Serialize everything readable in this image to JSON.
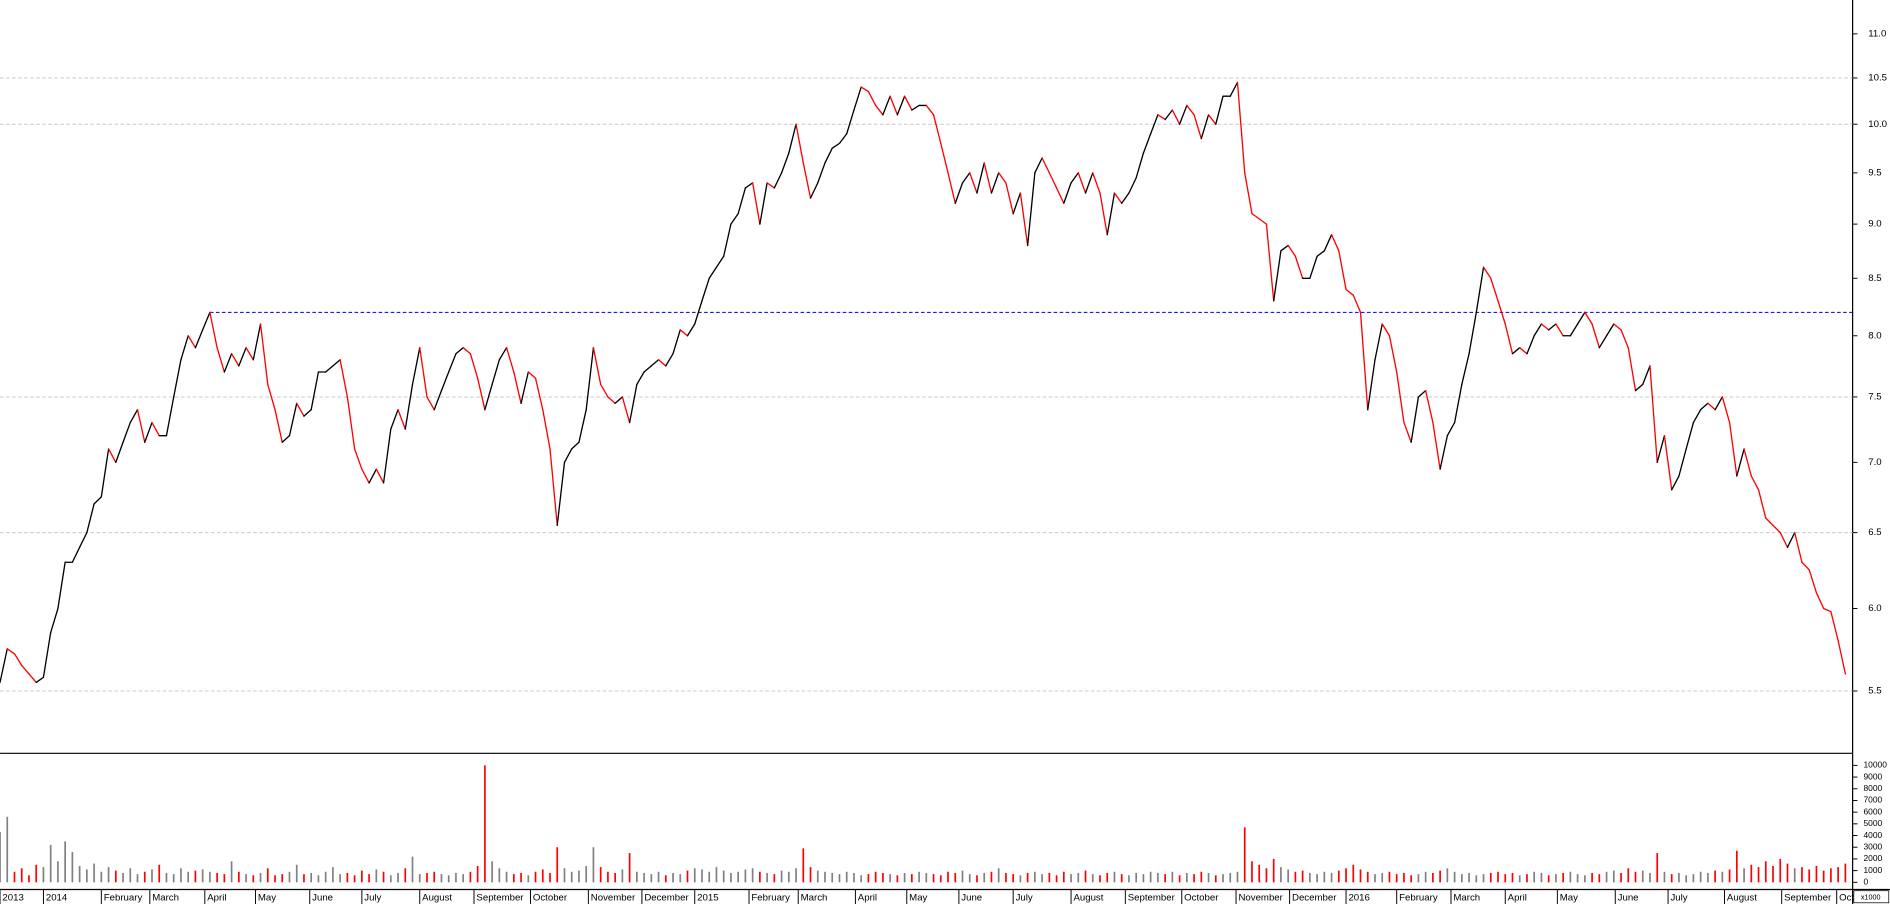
{
  "chart_data": [
    {
      "type": "line",
      "log_scale": true,
      "up_color": "#000000",
      "down_color": "#ff0000",
      "values": [
        5.55,
        5.75,
        5.72,
        5.65,
        5.6,
        5.55,
        5.58,
        5.85,
        6.0,
        6.3,
        6.3,
        6.4,
        6.5,
        6.7,
        6.75,
        7.1,
        7.0,
        7.15,
        7.3,
        7.4,
        7.15,
        7.3,
        7.2,
        7.2,
        7.5,
        7.8,
        8.0,
        7.9,
        8.05,
        8.2,
        7.9,
        7.7,
        7.85,
        7.75,
        7.9,
        7.8,
        8.1,
        7.6,
        7.4,
        7.15,
        7.2,
        7.45,
        7.35,
        7.4,
        7.7,
        7.7,
        7.75,
        7.8,
        7.5,
        7.1,
        6.95,
        6.85,
        6.95,
        6.85,
        7.25,
        7.4,
        7.25,
        7.6,
        7.9,
        7.5,
        7.4,
        7.55,
        7.7,
        7.85,
        7.9,
        7.85,
        7.65,
        7.4,
        7.6,
        7.8,
        7.9,
        7.7,
        7.45,
        7.7,
        7.65,
        7.4,
        7.1,
        6.55,
        7.0,
        7.1,
        7.15,
        7.4,
        7.9,
        7.6,
        7.5,
        7.45,
        7.5,
        7.3,
        7.6,
        7.7,
        7.75,
        7.8,
        7.75,
        7.85,
        8.05,
        8.0,
        8.1,
        8.3,
        8.5,
        8.6,
        8.7,
        9.0,
        9.1,
        9.35,
        9.4,
        9.0,
        9.4,
        9.35,
        9.5,
        9.7,
        10.0,
        9.6,
        9.25,
        9.4,
        9.6,
        9.75,
        9.8,
        9.9,
        10.15,
        10.4,
        10.35,
        10.2,
        10.1,
        10.3,
        10.1,
        10.3,
        10.15,
        10.2,
        10.2,
        10.1,
        9.8,
        9.5,
        9.2,
        9.4,
        9.5,
        9.3,
        9.6,
        9.3,
        9.5,
        9.4,
        9.1,
        9.3,
        8.8,
        9.5,
        9.65,
        9.5,
        9.35,
        9.2,
        9.4,
        9.5,
        9.3,
        9.5,
        9.3,
        8.9,
        9.3,
        9.2,
        9.3,
        9.45,
        9.7,
        9.9,
        10.1,
        10.05,
        10.15,
        10.0,
        10.2,
        10.1,
        9.85,
        10.1,
        10.0,
        10.3,
        10.3,
        10.45,
        9.5,
        9.1,
        9.05,
        9.0,
        8.3,
        8.75,
        8.8,
        8.7,
        8.5,
        8.5,
        8.7,
        8.75,
        8.9,
        8.75,
        8.4,
        8.35,
        8.2,
        7.4,
        7.8,
        8.1,
        8.0,
        7.7,
        7.3,
        7.15,
        7.5,
        7.55,
        7.3,
        6.95,
        7.2,
        7.3,
        7.6,
        7.85,
        8.2,
        8.6,
        8.5,
        8.3,
        8.1,
        7.85,
        7.9,
        7.85,
        8.0,
        8.1,
        8.05,
        8.1,
        8.0,
        8.0,
        8.1,
        8.2,
        8.1,
        7.9,
        8.0,
        8.1,
        8.05,
        7.9,
        7.55,
        7.6,
        7.75,
        7.0,
        7.2,
        6.8,
        6.9,
        7.1,
        7.3,
        7.4,
        7.45,
        7.4,
        7.5,
        7.3,
        6.9,
        7.1,
        6.9,
        6.8,
        6.6,
        6.55,
        6.5,
        6.4,
        6.5,
        6.3,
        6.25,
        6.1,
        6.0,
        5.98,
        5.8,
        5.6
      ],
      "xlim": [
        0,
        256
      ],
      "xticks": [
        {
          "value": 0,
          "label": "2013"
        },
        {
          "value": 6,
          "label": "2014"
        },
        {
          "value": 14,
          "label": "February"
        },
        {
          "value": 20.7,
          "label": "March"
        },
        {
          "value": 28.3,
          "label": "April"
        },
        {
          "value": 35.3,
          "label": "May"
        },
        {
          "value": 42.8,
          "label": "June"
        },
        {
          "value": 50,
          "label": "July"
        },
        {
          "value": 58,
          "label": "August"
        },
        {
          "value": 65.5,
          "label": "September"
        },
        {
          "value": 73.3,
          "label": "October"
        },
        {
          "value": 81.3,
          "label": "November"
        },
        {
          "value": 88.7,
          "label": "December"
        },
        {
          "value": 96,
          "label": "2015"
        },
        {
          "value": 103.5,
          "label": "February"
        },
        {
          "value": 110.3,
          "label": "March"
        },
        {
          "value": 118.2,
          "label": "April"
        },
        {
          "value": 125.3,
          "label": "May"
        },
        {
          "value": 132.5,
          "label": "June"
        },
        {
          "value": 140,
          "label": "July"
        },
        {
          "value": 148,
          "label": "August"
        },
        {
          "value": 155.5,
          "label": "September"
        },
        {
          "value": 163.3,
          "label": "October"
        },
        {
          "value": 170.8,
          "label": "November"
        },
        {
          "value": 178.2,
          "label": "December"
        },
        {
          "value": 186,
          "label": "2016"
        },
        {
          "value": 193,
          "label": "February"
        },
        {
          "value": 200.5,
          "label": "March"
        },
        {
          "value": 208,
          "label": "April"
        },
        {
          "value": 215.2,
          "label": "May"
        },
        {
          "value": 223.2,
          "label": "June"
        },
        {
          "value": 230.5,
          "label": "July"
        },
        {
          "value": 238.3,
          "label": "August"
        },
        {
          "value": 246.2,
          "label": "September"
        },
        {
          "value": 253.8,
          "label": "Oct"
        }
      ],
      "ylim": [
        5.15,
        11.4
      ],
      "yticks": [
        5.5,
        {
          "value": 6,
          "label": "6.0"
        },
        6.5,
        {
          "value": 7,
          "label": "7.0"
        },
        7.5,
        {
          "value": 8,
          "label": "8.0"
        },
        8.5,
        {
          "value": 9,
          "label": "9.0"
        },
        9.5,
        {
          "value": 10,
          "label": "10.0"
        },
        10.5,
        {
          "value": 11,
          "label": "11.0"
        }
      ],
      "grid_lines": [
        5.5,
        6.5,
        7.5,
        10.0,
        10.5
      ],
      "grid_color": "#c8c8c8",
      "reference_line": {
        "value": 8.2,
        "start": 29,
        "color": "#0000cc"
      }
    },
    {
      "type": "bar",
      "up_color": "#808080",
      "down_color": "#ff0000",
      "unit_label": "x1000",
      "values": [
        4300,
        5600,
        900,
        1200,
        600,
        1500,
        1300,
        3200,
        1800,
        3500,
        2600,
        1400,
        1100,
        1600,
        900,
        1300,
        1000,
        800,
        1200,
        700,
        900,
        1100,
        1500,
        800,
        700,
        1200,
        900,
        1000,
        1100,
        900,
        800,
        700,
        1800,
        900,
        700,
        600,
        800,
        1200,
        600,
        700,
        900,
        1500,
        700,
        800,
        600,
        900,
        1300,
        700,
        800,
        600,
        1000,
        700,
        1100,
        900,
        600,
        800,
        1200,
        2200,
        700,
        800,
        900,
        700,
        600,
        800,
        700,
        900,
        1400,
        10000,
        1800,
        1200,
        900,
        700,
        800,
        600,
        900,
        1100,
        800,
        3000,
        1200,
        900,
        1000,
        1400,
        3000,
        1300,
        900,
        800,
        1100,
        2500,
        900,
        800,
        700,
        900,
        600,
        800,
        700,
        1000,
        1200,
        1100,
        900,
        1300,
        1000,
        800,
        900,
        1100,
        1200,
        900,
        800,
        700,
        1000,
        900,
        1200,
        2900,
        1300,
        1000,
        900,
        800,
        700,
        900,
        800,
        600,
        700,
        900,
        800,
        700,
        600,
        800,
        700,
        900,
        800,
        700,
        600,
        900,
        800,
        1000,
        700,
        600,
        800,
        900,
        1200,
        800,
        700,
        600,
        800,
        900,
        700,
        800,
        600,
        900,
        700,
        800,
        1000,
        700,
        600,
        800,
        900,
        700,
        600,
        800,
        700,
        900,
        800,
        700,
        900,
        600,
        800,
        700,
        900,
        800,
        600,
        700,
        800,
        900,
        4700,
        1800,
        1500,
        1200,
        2000,
        1300,
        1100,
        900,
        1000,
        800,
        700,
        900,
        800,
        1000,
        1200,
        1500,
        1100,
        900,
        700,
        800,
        900,
        700,
        800,
        600,
        700,
        900,
        800,
        1000,
        1200,
        900,
        700,
        800,
        600,
        700,
        800,
        900,
        700,
        800,
        600,
        700,
        900,
        800,
        600,
        700,
        800,
        900,
        700,
        600,
        800,
        700,
        900,
        1000,
        800,
        1200,
        900,
        1000,
        800,
        2500,
        900,
        700,
        800,
        600,
        700,
        900,
        800,
        1000,
        900,
        1100,
        2700,
        1200,
        1500,
        1300,
        1800,
        1400,
        2000,
        1600,
        1200,
        1300,
        1100,
        1400,
        1000,
        1200,
        1300,
        1600
      ],
      "ylim": [
        0,
        10000
      ],
      "yticks": [
        0,
        1000,
        2000,
        3000,
        4000,
        5000,
        6000,
        7000,
        8000,
        9000,
        10000
      ]
    }
  ]
}
